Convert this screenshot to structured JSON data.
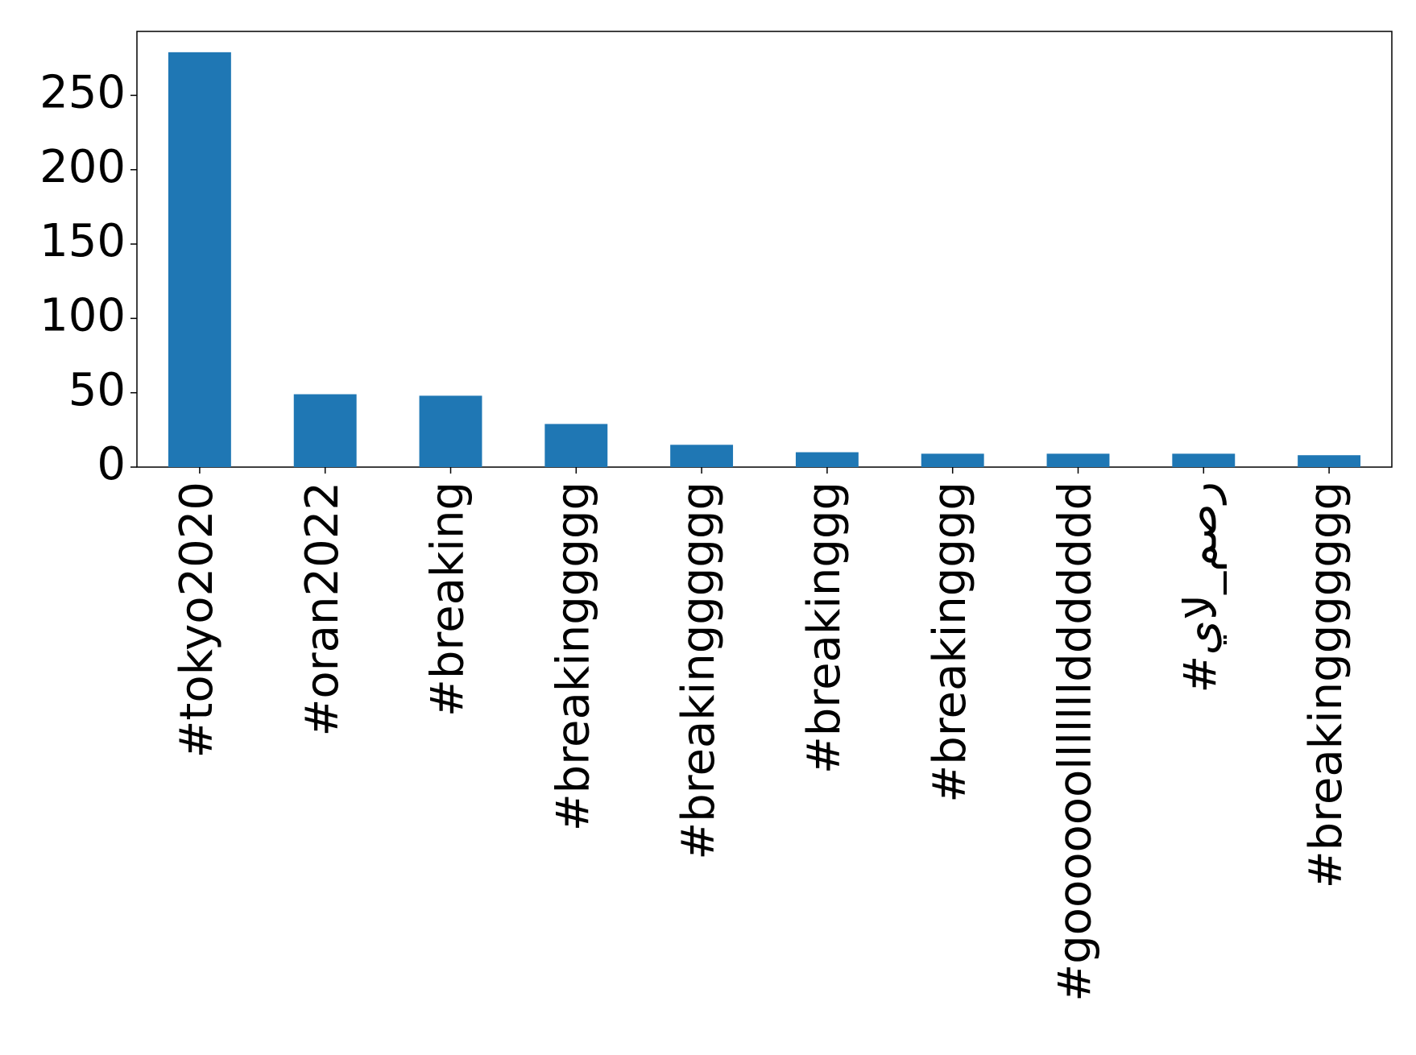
{
  "chart_data": {
    "type": "bar",
    "categories": [
      "#tokyo2020",
      "#oran2022",
      "#breaking",
      "#breakinggggg",
      "#breakingggggg",
      "#breakinggg",
      "#breakingggg",
      "#goooooolllllllddddddd",
      "#يال_مصر",
      "#breakinggggggg"
    ],
    "values": [
      279,
      49,
      48,
      29,
      15,
      10,
      9,
      9,
      9,
      8
    ],
    "color": "#1f77b4",
    "ylim": [
      0,
      293
    ],
    "yticks": [
      0,
      50,
      100,
      150,
      200,
      250
    ],
    "grid": false
  }
}
